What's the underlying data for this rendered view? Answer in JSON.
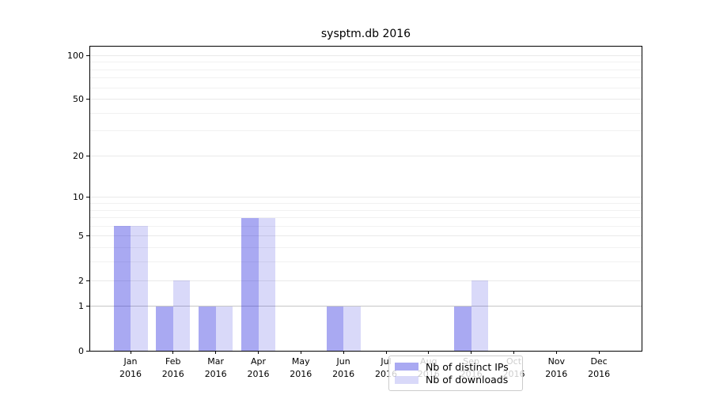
{
  "figure": {
    "title": "sysptm.db 2016"
  },
  "chart_data": {
    "type": "bar",
    "title": "sysptm.db 2016",
    "categories": [
      "Jan",
      "Feb",
      "Mar",
      "Apr",
      "May",
      "Jun",
      "Jul",
      "Aug",
      "Sep",
      "Oct",
      "Nov",
      "Dec"
    ],
    "x_year_label": "2016",
    "series": [
      {
        "name": "Nb of distinct IPs",
        "color": "rgba(30,30,220,0.38)",
        "color_on_white": "#aaaaf0",
        "values": [
          6,
          1,
          1,
          7,
          0,
          1,
          0,
          0,
          1,
          0,
          0,
          0
        ]
      },
      {
        "name": "Nb of downloads",
        "color": "rgba(30,30,220,0.17)",
        "color_on_white": "#d9d9f9",
        "values": [
          6,
          2,
          1,
          7,
          0,
          1,
          0,
          0,
          2,
          0,
          0,
          0
        ]
      }
    ],
    "xlabel": "",
    "ylabel": "",
    "yscale": "log1p",
    "ylim": [
      0,
      115
    ],
    "yticks": [
      0,
      1,
      2,
      5,
      10,
      20,
      50,
      100
    ],
    "minor_gridlines": [
      3,
      4,
      6,
      7,
      8,
      9,
      30,
      40,
      60,
      70,
      80,
      90
    ],
    "grid": true,
    "legend_position": "inside-bottom-center",
    "gridline_colors": {
      "at_one": "#c6c6c6",
      "major": "#e9e9e9",
      "minor": "#f1f1f1"
    },
    "spine_color": "#000000"
  }
}
